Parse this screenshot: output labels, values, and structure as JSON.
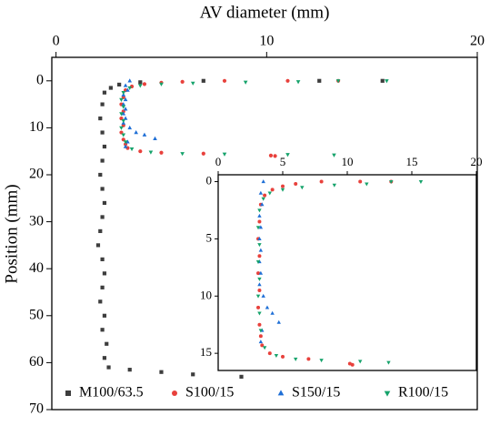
{
  "chart_data": [
    {
      "type": "scatter",
      "x_label": "AV diameter (mm)",
      "y_label": "Position (mm)",
      "x_axis_position": "top",
      "y_inverted": true,
      "xlim": [
        -0.2,
        20
      ],
      "xticks": [
        0,
        10,
        20
      ],
      "ylim": [
        -5,
        70
      ],
      "yticks": [
        0,
        10,
        20,
        30,
        40,
        50,
        60,
        70
      ],
      "legend": "bottom",
      "series": [
        {
          "name": "M100/63.5",
          "color": "#3d3d3d",
          "marker": "square",
          "x": [
            15.5,
            12.5,
            7,
            4,
            3,
            2.6,
            2.3,
            2.2,
            2.1,
            2.2,
            2.3,
            2.2,
            2.1,
            2.2,
            2.3,
            2.2,
            2.1,
            2.0,
            2.2,
            2.3,
            2.2,
            2.1,
            2.3,
            2.2,
            2.4,
            2.3,
            2.5,
            3.5,
            5,
            6.5,
            8.8
          ],
          "values": [
            0,
            0,
            0,
            0.3,
            0.8,
            1.5,
            2.5,
            5,
            8,
            11,
            14,
            17,
            20,
            23,
            26,
            29,
            32,
            35,
            38,
            41,
            44,
            47,
            50,
            53,
            56,
            59,
            61,
            61.5,
            62,
            62.5,
            63
          ]
        },
        {
          "name": "S100/15",
          "color": "#e8413c",
          "marker": "circle",
          "x": [
            13.4,
            11,
            8,
            6,
            5,
            4.2,
            3.6,
            3.3,
            3.2,
            3.1,
            3.2,
            3.1,
            3.2,
            3.1,
            3.2,
            3.3,
            3.4,
            4,
            5,
            7,
            10.2,
            10.4
          ],
          "values": [
            0,
            0,
            0,
            0.2,
            0.4,
            0.7,
            1.2,
            2,
            3.5,
            5,
            6.5,
            8,
            9.5,
            11,
            12.5,
            13.5,
            14.3,
            15,
            15.3,
            15.5,
            15.9,
            16.0
          ]
        },
        {
          "name": "S150/15",
          "color": "#1f6fd6",
          "marker": "triangle-up",
          "x": [
            3.5,
            3.3,
            3.4,
            3.2,
            3.3,
            3.2,
            3.3,
            3.2,
            3.3,
            3.2,
            3.5,
            3.8,
            4.2,
            4.7,
            3.4,
            3.3
          ],
          "values": [
            0,
            1,
            2,
            3,
            4,
            5,
            6,
            7,
            8,
            9,
            10,
            11,
            11.5,
            12.3,
            13,
            14
          ]
        },
        {
          "name": "R100/15",
          "color": "#16a36b",
          "marker": "triangle-down",
          "x": [
            15.7,
            13.4,
            11.5,
            9,
            6.5,
            5,
            4,
            3.5,
            3.2,
            3.1,
            3.2,
            3.1,
            3.2,
            3.1,
            3.2,
            3.3,
            3.6,
            4.5,
            6,
            8,
            11,
            13.2
          ],
          "values": [
            0,
            0,
            0.2,
            0.3,
            0.5,
            0.7,
            1,
            1.5,
            2.5,
            4,
            5.5,
            7,
            8.5,
            10,
            11.5,
            13,
            14.5,
            15.2,
            15.5,
            15.6,
            15.7,
            15.8
          ]
        }
      ]
    },
    {
      "type": "scatter",
      "x_axis_position": "top",
      "y_inverted": true,
      "xlim": [
        0,
        20
      ],
      "xticks": [
        0,
        5,
        10,
        15,
        20
      ],
      "ylim": [
        -0.6,
        16.5
      ],
      "yticks": [
        0,
        5,
        10,
        15
      ],
      "series": [
        {
          "color": "#e8413c",
          "marker": "circle",
          "x": [
            13.4,
            11,
            8,
            6,
            5,
            4.2,
            3.6,
            3.3,
            3.2,
            3.1,
            3.2,
            3.1,
            3.2,
            3.1,
            3.2,
            3.3,
            3.4,
            4,
            5,
            7,
            10.2,
            10.4
          ],
          "values": [
            0,
            0,
            0,
            0.2,
            0.4,
            0.7,
            1.2,
            2,
            3.5,
            5,
            6.5,
            8,
            9.5,
            11,
            12.5,
            13.5,
            14.3,
            15,
            15.3,
            15.5,
            15.9,
            16.0
          ]
        },
        {
          "color": "#1f6fd6",
          "marker": "triangle-up",
          "x": [
            3.5,
            3.3,
            3.4,
            3.2,
            3.3,
            3.2,
            3.3,
            3.2,
            3.3,
            3.2,
            3.5,
            3.8,
            4.2,
            4.7,
            3.4,
            3.3
          ],
          "values": [
            0,
            1,
            2,
            3,
            4,
            5,
            6,
            7,
            8,
            9,
            10,
            11,
            11.5,
            12.3,
            13,
            14
          ]
        },
        {
          "color": "#16a36b",
          "marker": "triangle-down",
          "x": [
            15.7,
            13.4,
            11.5,
            9,
            6.5,
            5,
            4,
            3.5,
            3.2,
            3.1,
            3.2,
            3.1,
            3.2,
            3.1,
            3.2,
            3.3,
            3.6,
            4.5,
            6,
            8,
            11,
            13.2
          ],
          "values": [
            0,
            0,
            0.2,
            0.3,
            0.5,
            0.7,
            1,
            1.5,
            2.5,
            4,
            5.5,
            7,
            8.5,
            10,
            11.5,
            13,
            14.5,
            15.2,
            15.5,
            15.6,
            15.7,
            15.8
          ]
        }
      ]
    }
  ]
}
